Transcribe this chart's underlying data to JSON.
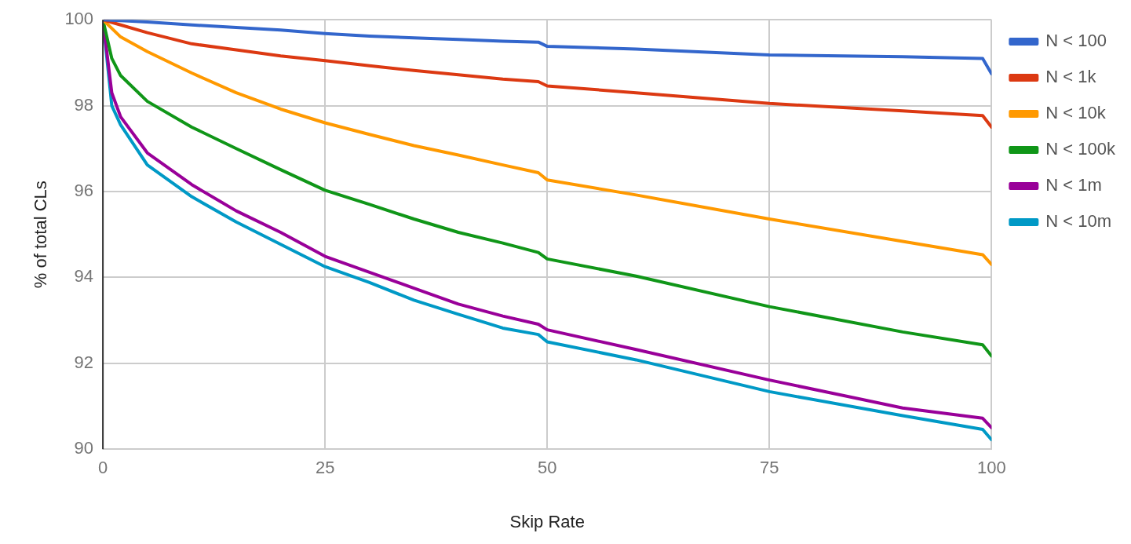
{
  "chart_data": {
    "type": "line",
    "xlabel": "Skip Rate",
    "ylabel": "% of total CLs",
    "x": [
      0,
      1,
      2,
      5,
      10,
      15,
      20,
      25,
      30,
      35,
      40,
      45,
      49,
      50,
      60,
      75,
      90,
      99,
      100
    ],
    "series": [
      {
        "name": "N < 100",
        "color": "#3366cc",
        "values": [
          100,
          99.99,
          99.98,
          99.95,
          99.88,
          99.82,
          99.76,
          99.68,
          99.62,
          99.58,
          99.54,
          99.5,
          99.48,
          99.38,
          99.32,
          99.18,
          99.14,
          99.1,
          98.74
        ]
      },
      {
        "name": "N < 1k",
        "color": "#dc3912",
        "values": [
          100,
          99.94,
          99.88,
          99.7,
          99.44,
          99.3,
          99.16,
          99.05,
          98.93,
          98.82,
          98.72,
          98.62,
          98.56,
          98.46,
          98.3,
          98.05,
          97.88,
          97.77,
          97.5
        ]
      },
      {
        "name": "N < 10k",
        "color": "#ff9900",
        "values": [
          100,
          99.8,
          99.6,
          99.26,
          98.76,
          98.3,
          97.92,
          97.6,
          97.33,
          97.07,
          96.85,
          96.62,
          96.44,
          96.27,
          95.92,
          95.36,
          94.84,
          94.53,
          94.3
        ]
      },
      {
        "name": "N < 100k",
        "color": "#109618",
        "values": [
          100,
          99.1,
          98.7,
          98.1,
          97.5,
          97.0,
          96.51,
          96.03,
          95.7,
          95.36,
          95.05,
          94.8,
          94.58,
          94.43,
          94.03,
          93.32,
          92.73,
          92.43,
          92.17
        ]
      },
      {
        "name": "N < 1m",
        "color": "#990099",
        "values": [
          100,
          98.3,
          97.74,
          96.9,
          96.16,
          95.55,
          95.05,
          94.49,
          94.12,
          93.75,
          93.38,
          93.1,
          92.91,
          92.78,
          92.32,
          91.61,
          90.96,
          90.72,
          90.5
        ]
      },
      {
        "name": "N < 10m",
        "color": "#0099c6",
        "values": [
          100,
          98.0,
          97.55,
          96.62,
          95.88,
          95.29,
          94.77,
          94.25,
          93.88,
          93.47,
          93.14,
          92.82,
          92.67,
          92.5,
          92.08,
          91.34,
          90.78,
          90.46,
          90.22
        ]
      }
    ],
    "xlim": [
      0,
      100
    ],
    "xticks": [
      0,
      25,
      50,
      75,
      100
    ],
    "ylim": [
      90,
      100
    ],
    "yticks": [
      90,
      92,
      94,
      96,
      98,
      100
    ],
    "grid": true,
    "legend": "top right",
    "marker": "none",
    "line_style": "solid"
  }
}
